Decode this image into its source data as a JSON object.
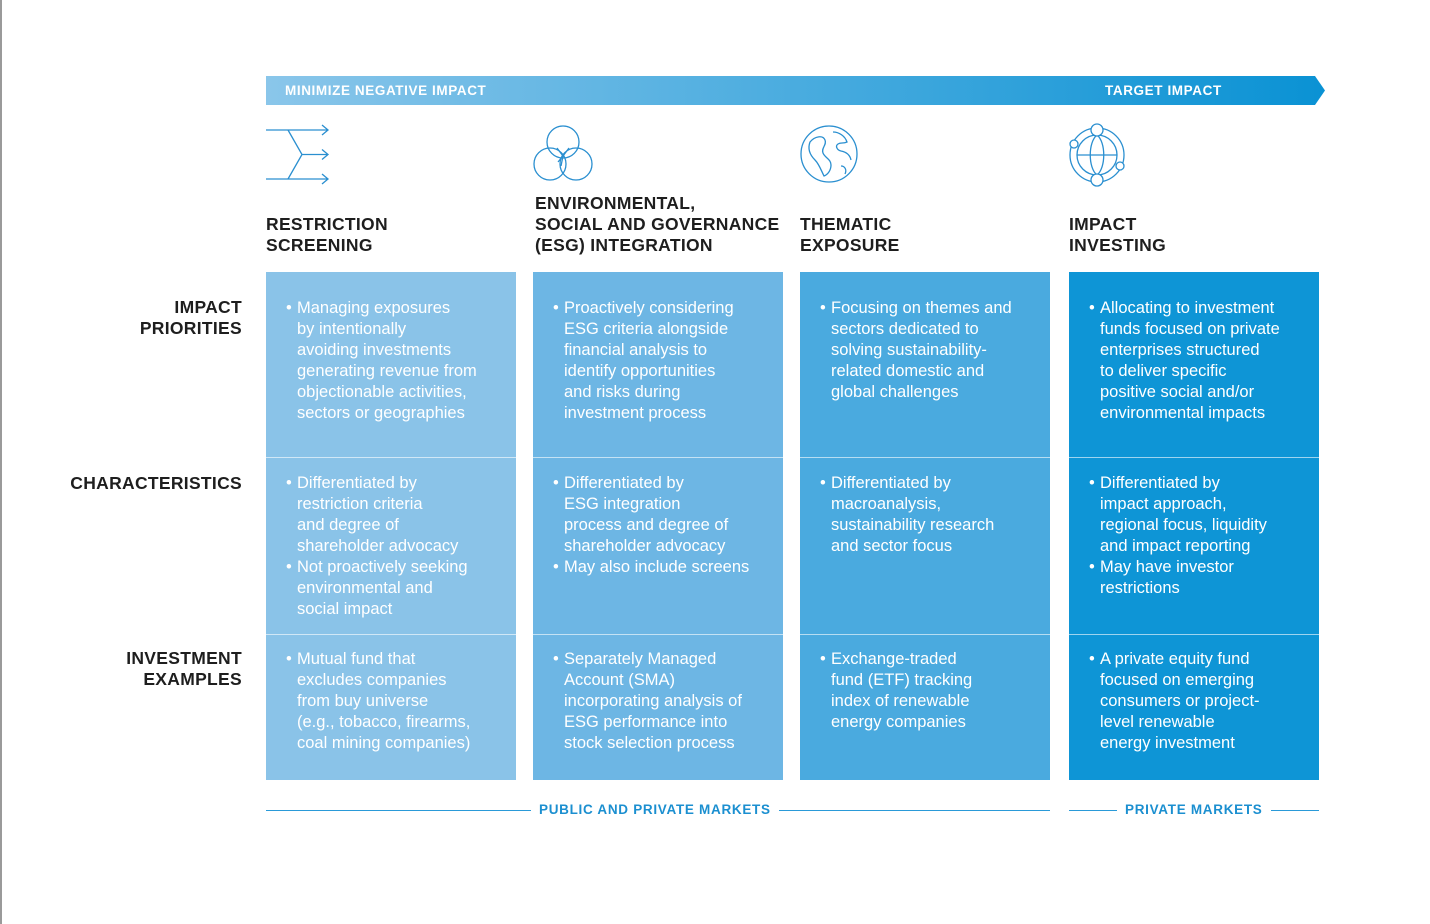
{
  "banner": {
    "left_label": "MINIMIZE NEGATIVE IMPACT",
    "right_label": "TARGET IMPACT",
    "gradient_start": "#8ac6ea",
    "gradient_end": "#0a92d4"
  },
  "row_labels": {
    "impact_priorities": [
      "IMPACT",
      "PRIORITIES"
    ],
    "characteristics": [
      "CHARACTERISTICS"
    ],
    "investment_examples": [
      "INVESTMENT",
      "EXAMPLES"
    ]
  },
  "columns": [
    {
      "icon": "arrows-filter-icon",
      "title": [
        "RESTRICTION",
        "SCREENING"
      ],
      "color": "#8ac3e8",
      "impact_priorities": [
        [
          "Managing exposures",
          "by intentionally",
          "avoiding investments",
          "generating revenue from",
          "objectionable activities,",
          "sectors or geographies"
        ]
      ],
      "characteristics": [
        [
          "Differentiated by",
          "restriction criteria",
          "and degree of",
          "shareholder advocacy"
        ],
        [
          "Not proactively seeking",
          "environmental and",
          "social impact"
        ]
      ],
      "investment_examples": [
        [
          "Mutual fund that",
          "excludes companies",
          "from buy universe",
          "(e.g., tobacco, firearms,",
          "coal mining companies)"
        ]
      ]
    },
    {
      "icon": "interlocking-circles-icon",
      "title": [
        "ENVIRONMENTAL,",
        "SOCIAL AND GOVERNANCE",
        "(ESG) INTEGRATION"
      ],
      "color": "#6db6e4",
      "impact_priorities": [
        [
          "Proactively considering",
          "ESG criteria alongside",
          "financial analysis to",
          "identify opportunities",
          "and risks during",
          "investment process"
        ]
      ],
      "characteristics": [
        [
          "Differentiated by",
          "ESG integration",
          "process and degree of",
          "shareholder advocacy"
        ],
        [
          "May also include screens"
        ]
      ],
      "investment_examples": [
        [
          "Separately Managed",
          "Account (SMA)",
          "incorporating analysis of",
          "ESG performance into",
          "stock selection process"
        ]
      ]
    },
    {
      "icon": "globe-icon",
      "title": [
        "THEMATIC",
        "EXPOSURE"
      ],
      "color": "#4aaadf",
      "impact_priorities": [
        [
          "Focusing on themes and",
          "sectors dedicated to",
          "solving sustainability-",
          "related domestic and",
          "global challenges"
        ]
      ],
      "characteristics": [
        [
          "Differentiated by",
          "macroanalysis,",
          "sustainability research",
          "and sector focus"
        ]
      ],
      "investment_examples": [
        [
          "Exchange-traded",
          "fund (ETF) tracking",
          "index of renewable",
          "energy companies"
        ]
      ]
    },
    {
      "icon": "globe-network-icon",
      "title": [
        "IMPACT",
        "INVESTING"
      ],
      "color": "#0e95d6",
      "impact_priorities": [
        [
          "Allocating to investment",
          "funds focused on private",
          "enterprises structured",
          "to deliver specific",
          "positive social and/or",
          "environmental impacts"
        ]
      ],
      "characteristics": [
        [
          "Differentiated by",
          "impact approach,",
          "regional focus, liquidity",
          "and impact reporting"
        ],
        [
          "May have investor",
          "restrictions"
        ]
      ],
      "investment_examples": [
        [
          "A private equity fund",
          "focused on emerging",
          "consumers or project-",
          "level renewable",
          "energy investment"
        ]
      ]
    }
  ],
  "markets": {
    "public_private": "PUBLIC AND PRIVATE MARKETS",
    "private": "PRIVATE MARKETS",
    "line_color": "#2a9ad8"
  }
}
